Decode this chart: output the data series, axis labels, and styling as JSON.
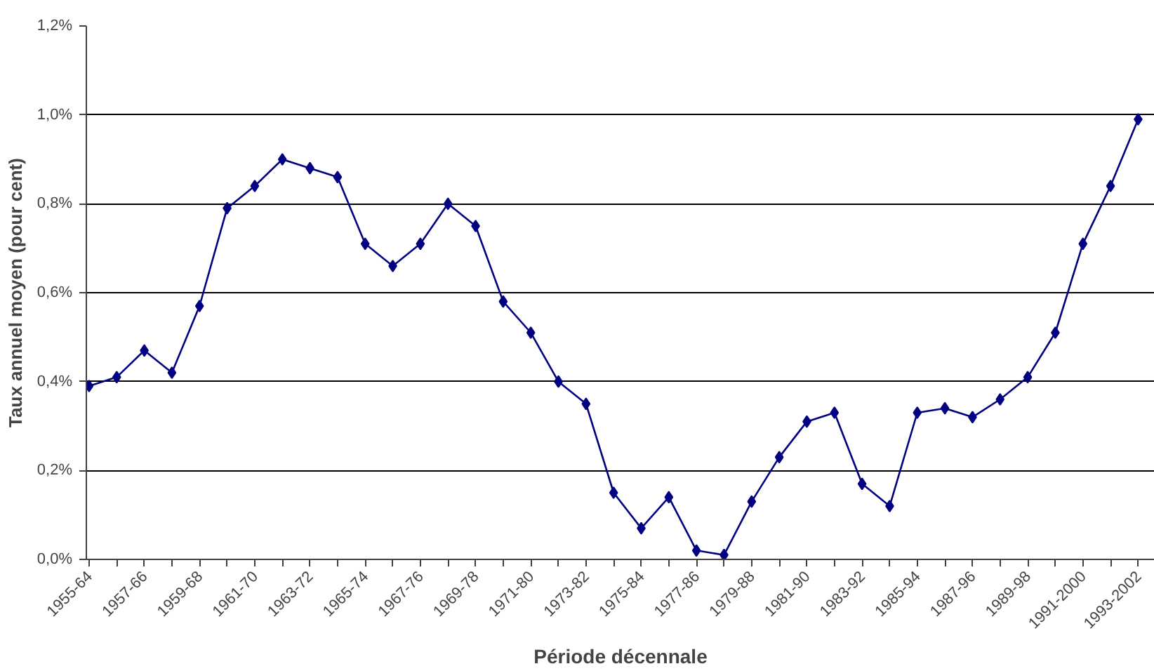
{
  "chart_data": {
    "type": "line",
    "xlabel": "Période décennale",
    "ylabel": "Taux annuel moyen (pour cent)",
    "categories": [
      "1955-64",
      null,
      "1957-66",
      null,
      "1959-68",
      null,
      "1961-70",
      null,
      "1963-72",
      null,
      "1965-74",
      null,
      "1967-76",
      null,
      "1969-78",
      null,
      "1971-80",
      null,
      "1973-82",
      null,
      "1975-84",
      null,
      "1977-86",
      null,
      "1979-88",
      null,
      "1981-90",
      null,
      "1983-92",
      null,
      "1985-94",
      null,
      "1987-96",
      null,
      "1989-98",
      null,
      "1991-2000",
      null,
      "1993-2002"
    ],
    "series": [
      {
        "color": "#000080",
        "values": [
          0.39,
          0.41,
          0.47,
          0.42,
          0.57,
          0.79,
          0.84,
          0.9,
          0.88,
          0.86,
          0.71,
          0.66,
          0.71,
          0.8,
          0.75,
          0.58,
          0.51,
          0.4,
          0.35,
          0.15,
          0.07,
          0.14,
          0.02,
          0.01,
          0.13,
          0.23,
          0.31,
          0.33,
          0.17,
          0.12,
          0.33,
          0.34,
          0.32,
          0.36,
          0.41,
          0.51,
          0.71,
          0.84,
          0.99
        ]
      }
    ],
    "ylim": [
      0,
      1.2
    ],
    "yticks": [
      {
        "value": 0,
        "label": "0,0%"
      },
      {
        "value": 0.2,
        "label": "0,2%"
      },
      {
        "value": 0.4,
        "label": "0,4%"
      },
      {
        "value": 0.6,
        "label": "0,6%"
      },
      {
        "value": 0.8,
        "label": "0,8%"
      },
      {
        "value": 1.0,
        "label": "1,0%"
      },
      {
        "value": 1.2,
        "label": "1,2%"
      }
    ],
    "grid": "y",
    "marker": "diamond",
    "line_style": "solid"
  }
}
